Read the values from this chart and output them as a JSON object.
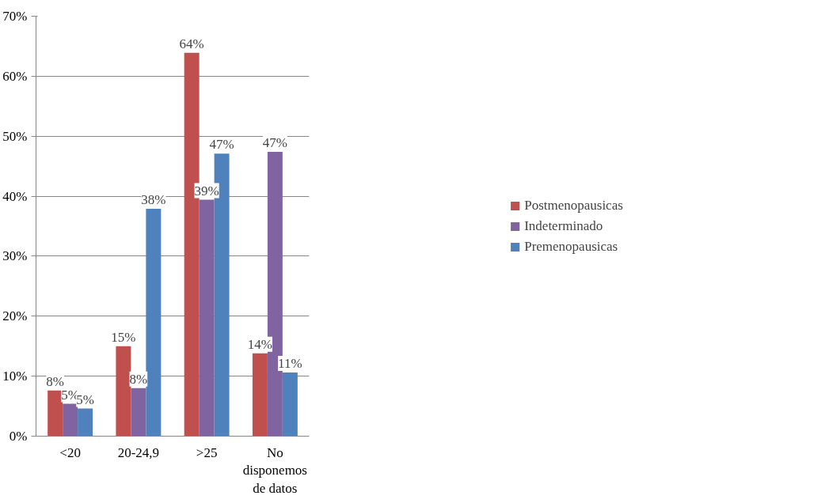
{
  "chart_data": {
    "type": "bar",
    "categories": [
      "<20",
      "20-24,9",
      ">25",
      "No disponemos de datos"
    ],
    "series": [
      {
        "name": "Postmenopausicas",
        "color": "#c0504d",
        "values": [
          7.6,
          15.0,
          63.9,
          13.8
        ],
        "value_labels": [
          "8%",
          "15%",
          "64%",
          "14%"
        ]
      },
      {
        "name": "Indeterminado",
        "color": "#8064a2",
        "values": [
          5.4,
          8.0,
          39.4,
          47.4
        ],
        "value_labels": [
          "5%",
          "8%",
          "39%",
          "47%"
        ]
      },
      {
        "name": "Premenopausicas",
        "color": "#4f81bd",
        "values": [
          4.6,
          37.9,
          47.1,
          10.6
        ],
        "value_labels": [
          "5%",
          "38%",
          "47%",
          "11%"
        ]
      }
    ],
    "ylim": [
      0,
      70
    ],
    "yticks": [
      {
        "value": 0,
        "label": "0%"
      },
      {
        "value": 10,
        "label": "10%"
      },
      {
        "value": 20,
        "label": "20%"
      },
      {
        "value": 30,
        "label": "30%"
      },
      {
        "value": 40,
        "label": "40%"
      },
      {
        "value": 50,
        "label": "50%"
      },
      {
        "value": 60,
        "label": "60%"
      },
      {
        "value": 70,
        "label": "70%"
      }
    ],
    "grid": "y",
    "legend": "right"
  }
}
